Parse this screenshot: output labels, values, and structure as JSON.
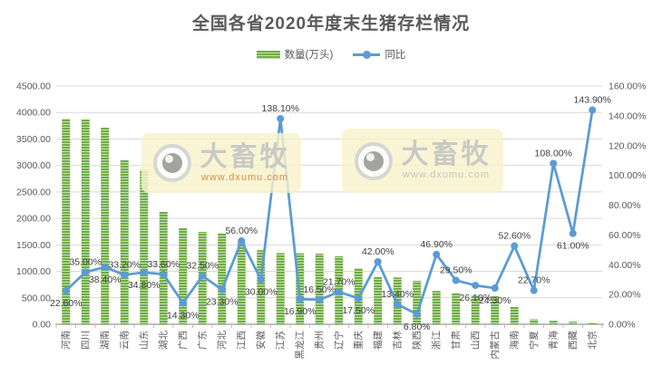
{
  "title": "全国各省2020年度末生猪存栏情况",
  "legend": [
    {
      "label": "数量(万头)",
      "swatch": "green-striped-bar"
    },
    {
      "label": "同比",
      "swatch": "blue-line-marker"
    }
  ],
  "watermark": {
    "brand": "大畜牧",
    "url": "www.dxumu.com",
    "brand_color": "#c9c9c5",
    "url_color_first": "#e08a45",
    "url_color_second": "#c6c6c2",
    "bg_color": "rgba(248,243,203,0.82)"
  },
  "chart_data": {
    "type": "bar+line",
    "title": "全国各省2020年度末生猪存栏情况",
    "categories": [
      "河南",
      "四川",
      "湖南",
      "云南",
      "山东",
      "湖北",
      "广西",
      "广东",
      "河北",
      "江西",
      "安徽",
      "江苏",
      "黑龙江",
      "贵州",
      "辽宁",
      "重庆",
      "福建",
      "吉林",
      "陕西",
      "浙江",
      "甘肃",
      "山西",
      "内蒙古",
      "海南",
      "宁夏",
      "青海",
      "西藏",
      "北京"
    ],
    "series": [
      {
        "name": "数量(万头)",
        "type": "bar",
        "axis": "left",
        "color": "#70AD47",
        "stripe_color": "#C6E0B4",
        "values": [
          3885,
          3870,
          3715,
          3105,
          2915,
          2125,
          1815,
          1745,
          1720,
          1545,
          1400,
          1345,
          1340,
          1335,
          1285,
          1060,
          895,
          885,
          820,
          630,
          590,
          550,
          530,
          330,
          95,
          65,
          50,
          30
        ]
      },
      {
        "name": "同比",
        "type": "line",
        "axis": "right",
        "color": "#5B9BD5",
        "values": [
          22.6,
          35.0,
          38.4,
          33.2,
          34.8,
          33.6,
          14.3,
          32.5,
          23.3,
          56.0,
          30.0,
          138.1,
          16.9,
          16.5,
          21.7,
          17.5,
          42.0,
          13.4,
          6.8,
          46.9,
          29.5,
          26.1,
          24.3,
          52.6,
          22.7,
          108.0,
          61.0,
          143.9
        ],
        "labels": [
          "22.60%",
          "35.00%",
          "38.40%",
          "33.20%",
          "34.80%",
          "33.60%",
          "14.30%",
          "32.50%",
          "23.30%",
          "56.00%",
          "30.00%",
          "138.10%",
          "16.90%",
          "16.50%",
          "21.70%",
          "17.50%",
          "42.00%",
          "13.40%",
          "6.80%",
          "46.90%",
          "29.50%",
          "26.10%",
          "24.30%",
          "52.60%",
          "22.70%",
          "108.00%",
          "61.00%",
          "143.90%"
        ],
        "label_side": [
          "below",
          "above",
          "below",
          "above",
          "below",
          "above",
          "below",
          "above",
          "below",
          "above",
          "below",
          "above",
          "below",
          "above",
          "above",
          "below",
          "above",
          "above",
          "below",
          "above",
          "above",
          "below",
          "below",
          "above",
          "above",
          "above",
          "below",
          "above"
        ]
      }
    ],
    "left_axis": {
      "min": 0,
      "max": 4500,
      "step": 500,
      "tick_labels": [
        "4500.00",
        "4000.00",
        "3500.00",
        "3000.00",
        "2500.00",
        "2000.00",
        "1500.00",
        "1000.00",
        "500.00",
        "0.00"
      ]
    },
    "right_axis": {
      "min": 0,
      "max": 160,
      "step": 20,
      "tick_labels": [
        "160.00%",
        "140.00%",
        "120.00%",
        "100.00%",
        "80.00%",
        "60.00%",
        "40.00%",
        "20.00%",
        "0.00%"
      ]
    },
    "grid": true,
    "legend_position": "top",
    "colors": {
      "gridline": "#D9D9D9",
      "axis_line": "#BFBFBF",
      "title_text": "#595959",
      "axis_text": "#595959",
      "data_label_text": "#3f3f3f"
    }
  }
}
